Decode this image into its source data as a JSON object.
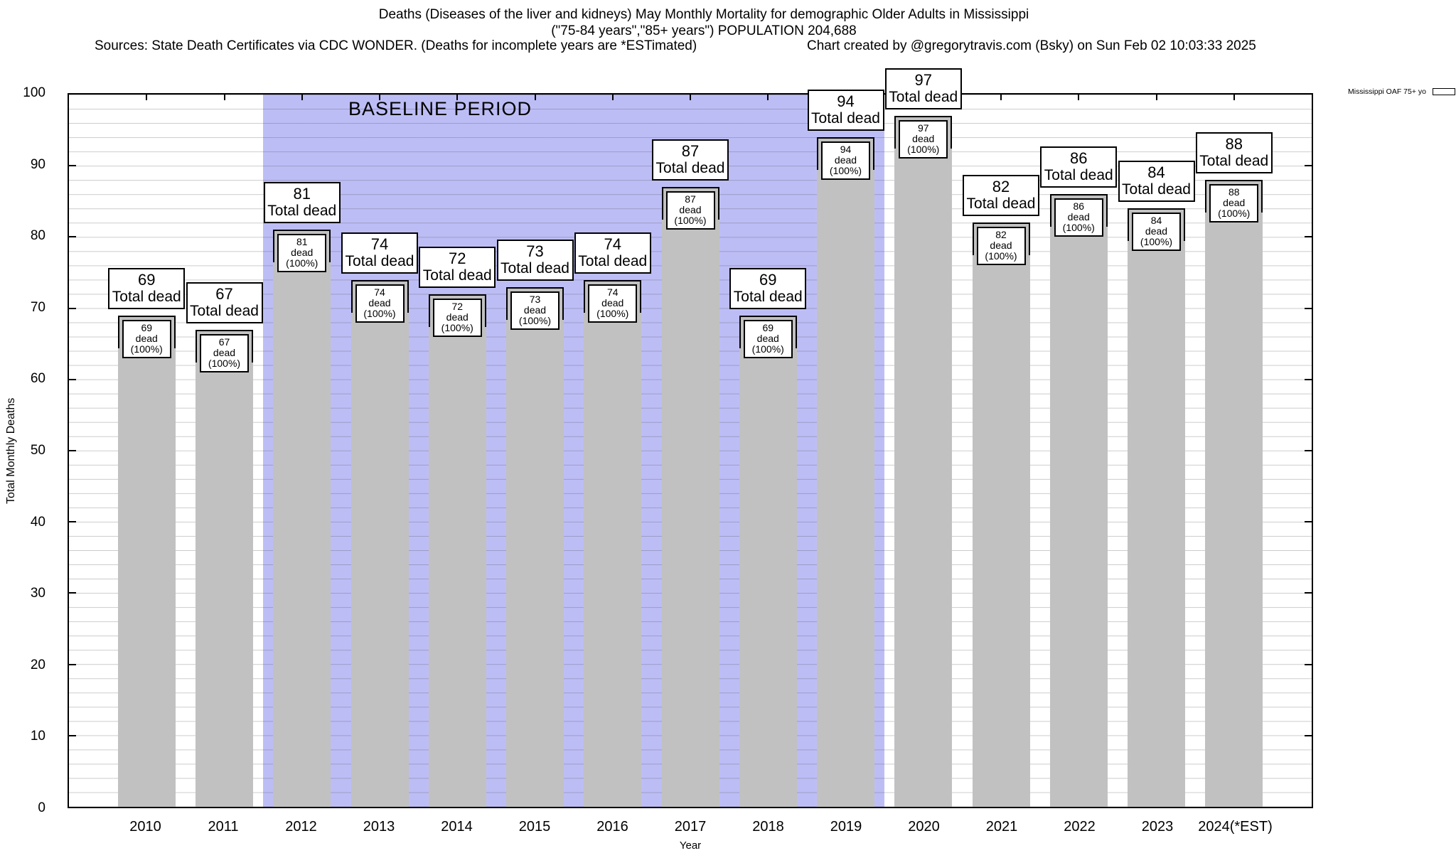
{
  "chart_data": {
    "type": "bar",
    "title": "Deaths (Diseases of the liver and kidneys) May Monthly Mortality for demographic Older Adults in Mississippi",
    "subtitle": "(\"75-84 years\",\"85+ years\") POPULATION 204,688",
    "source_note": "Sources: State Death Certificates via CDC WONDER. (Deaths for incomplete years are *ESTimated)",
    "credit": "Chart created by @gregorytravis.com (Bsky) on Sun Feb 02 10:03:33 2025",
    "xlabel": "Year",
    "ylabel": "Total Monthly Deaths",
    "ylim": [
      0,
      100
    ],
    "ytick_step": 10,
    "minor_grid_step": 2,
    "grid": "on",
    "legend_position": "top-right",
    "legend_label": "Mississippi OAF 75+ yo",
    "series_name": "Mississippi OAF 75+ yo",
    "categories": [
      "2010",
      "2011",
      "2012",
      "2013",
      "2014",
      "2015",
      "2016",
      "2017",
      "2018",
      "2019",
      "2020",
      "2021",
      "2022",
      "2023",
      "2024(*EST)"
    ],
    "values": [
      69,
      67,
      81,
      74,
      72,
      73,
      74,
      87,
      69,
      94,
      97,
      82,
      86,
      84,
      88
    ],
    "bar_top_label": "Total dead",
    "bar_inner_label": "dead (100%)",
    "baseline_band": {
      "label": "BASELINE PERIOD",
      "start_category": "2012",
      "end_category": "2019"
    },
    "colors": {
      "bar": "#c1c1c1",
      "band": "#bdbdf6",
      "grid": "#cccccc",
      "frame": "#000000"
    }
  }
}
